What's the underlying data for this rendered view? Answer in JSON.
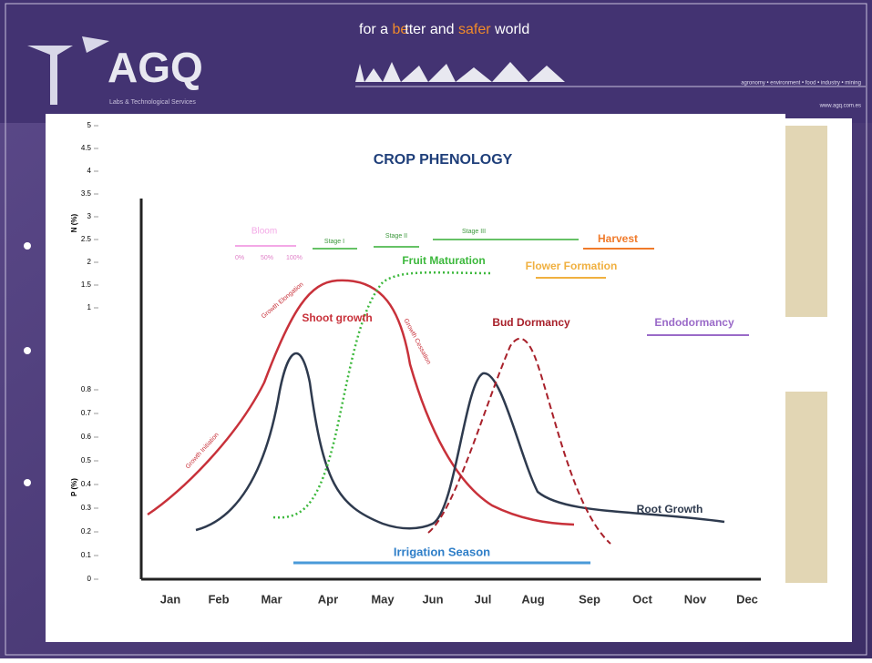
{
  "header": {
    "logo": "AGQ",
    "logo_subtitle": "Labs & Technological Services",
    "tagline": [
      "for a",
      "be",
      "tter and",
      "safer",
      "world"
    ],
    "sectors": "agronomy • environment • food • industry • mining",
    "url": "www.agq.com.es"
  },
  "back_chart": {
    "n_label": "N (%)",
    "n_ticks": [
      5,
      4.5,
      4,
      3.5,
      3,
      2.5,
      2,
      1.5,
      1
    ],
    "p_label": "P (%)",
    "p_ticks": [
      0.8,
      0.7,
      0.6,
      0.5,
      0.4,
      0.3,
      0.2,
      0.1,
      0
    ]
  },
  "chart": {
    "title": "CROP PHENOLOGY",
    "months": [
      "Jan",
      "Feb",
      "Mar",
      "Apr",
      "May",
      "Jun",
      "Jul",
      "Aug",
      "Sep",
      "Oct",
      "Nov",
      "Dec"
    ],
    "labels": {
      "bloom": "Bloom",
      "bloom_0": "0%",
      "bloom_50": "50%",
      "bloom_100": "100%",
      "stage_1": "Stage I",
      "stage_2": "Stage II",
      "stage_3": "Stage III",
      "harvest": "Harvest",
      "fruit_maturation": "Fruit Maturation",
      "flower_formation": "Flower Formation",
      "shoot_growth": "Shoot growth",
      "bud_dormancy": "Bud Dormancy",
      "endodormancy": "Endodormancy",
      "growth_elongation": "Growth Elongation",
      "growth_cessation": "Growth Cessation",
      "growth_initiation": "Growth Initiation",
      "root_growth": "Root Growth",
      "irrigation_season": "Irrigation Season"
    }
  }
}
